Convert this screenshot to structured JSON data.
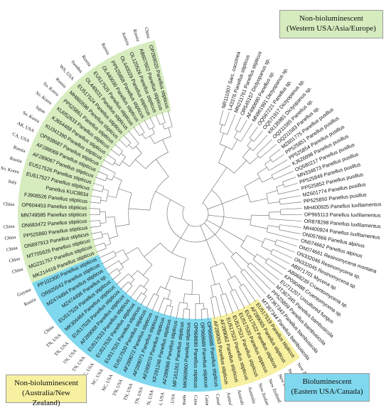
{
  "legend": {
    "western": {
      "line1": "Non-bioluminescent",
      "line2": "(Western USA/Asia/Europe)",
      "color": "#d6ecbf"
    },
    "australia": {
      "line1": "Non-bioluminescent",
      "line2": "(Australia/New Zealand)",
      "color": "#f6f0a0"
    },
    "eastern": {
      "line1": "Bioluminescent",
      "line2": "(Eastern USA/Canada)",
      "color": "#7fd8ee"
    }
  },
  "taxa": [
    {
      "label": "NR111007 Sarc. coccinea",
      "clade": "outgroup",
      "country": ""
    },
    {
      "label": "L43376 Panellus stipticus",
      "clade": "outgroup",
      "country": ""
    },
    {
      "label": "MN211761 Panellus stipticus",
      "clade": "outgroup",
      "country": ""
    },
    {
      "label": "OR545157 Dictyopanus sp.",
      "clade": "outgroup",
      "country": ""
    },
    {
      "label": "AF490690 Panellus sp.",
      "clade": "outgroup",
      "country": ""
    },
    {
      "label": "MN961991 Dictyopanus sp.",
      "clade": "outgroup",
      "country": ""
    },
    {
      "label": "OQ567221 Panellus sp.",
      "clade": "outgroup",
      "country": ""
    },
    {
      "label": "OQ571917 Dictyopanus sp.",
      "clade": "outgroup",
      "country": ""
    },
    {
      "label": "KR135981 Dictyopanus sp.",
      "clade": "outgroup",
      "country": ""
    },
    {
      "label": "OQ211585 Panellus sp.",
      "clade": "outgroup",
      "country": ""
    },
    {
      "label": "OQ211583 Panellus sp.",
      "clade": "outgroup",
      "country": ""
    },
    {
      "label": "MZ601775 Panellus pusillus",
      "clade": "outgroup",
      "country": ""
    },
    {
      "label": "PP525851 Panellus pusillus",
      "clade": "outgroup",
      "country": ""
    },
    {
      "label": "PP525854 Panellus pusillus",
      "clade": "outgroup",
      "country": ""
    },
    {
      "label": "KJ626998 Panellus pusillus",
      "clade": "outgroup",
      "country": ""
    },
    {
      "label": "OQ580217 Panellus pusillus",
      "clade": "outgroup",
      "country": ""
    },
    {
      "label": "MN334673 Panellus pusillus",
      "clade": "outgroup",
      "country": ""
    },
    {
      "label": "PP525849 Panellus pusillus",
      "clade": "outgroup",
      "country": ""
    },
    {
      "label": "PP525852 Panellus pusillus",
      "clade": "outgroup",
      "country": ""
    },
    {
      "label": "MZ601774 Panellus pusillus",
      "clade": "outgroup",
      "country": ""
    },
    {
      "label": "PP525850 Panellus pusillus",
      "clade": "outgroup",
      "country": ""
    },
    {
      "label": "MH400925 Panellus luxfilamentus",
      "clade": "outgroup",
      "country": ""
    },
    {
      "label": "OP965113 Panellus luxfilamentus",
      "clade": "outgroup",
      "country": ""
    },
    {
      "label": "OR878298 Panellus luxfilamentus",
      "clade": "outgroup",
      "country": ""
    },
    {
      "label": "MH400924 Panellus luxfilamentus",
      "clade": "outgroup",
      "country": ""
    },
    {
      "label": "ON057666 Panellus alpinus",
      "clade": "outgroup",
      "country": ""
    },
    {
      "label": "ON074662 Panellus alpinus",
      "clade": "outgroup",
      "country": ""
    },
    {
      "label": "ON074661 Resinomycena montana",
      "clade": "outgroup",
      "country": ""
    },
    {
      "label": "ON332046 Resinomycena sp.",
      "clade": "outgroup",
      "country": ""
    },
    {
      "label": "ON332045 Resinomycena sp.",
      "clade": "outgroup",
      "country": ""
    },
    {
      "label": "AB971701 Mycena sp.",
      "clade": "outgroup",
      "country": ""
    },
    {
      "label": "AB968239 Cruentomycena sp.",
      "clade": "outgroup",
      "country": ""
    },
    {
      "label": "KP090488 Cruentomycena sp.",
      "clade": "outgroup",
      "country": ""
    },
    {
      "label": "EU711207 Uncultured fungus",
      "clade": "outgroup",
      "country": ""
    },
    {
      "label": "MT367345 Panellus bambusicola",
      "clade": "outgroup",
      "country": ""
    },
    {
      "label": "PP525859 Panellus bambusicola",
      "clade": "outgroup",
      "country": ""
    },
    {
      "label": "MT367343 Panellus bambusicola",
      "clade": "outgroup",
      "country": ""
    },
    {
      "label": "MT367344 Panellus bambusicola",
      "clade": "outgroup",
      "country": ""
    },
    {
      "label": "EU517519 Panellus stipticus",
      "clade": "yellow",
      "country": "New Zealand"
    },
    {
      "label": "AF289065 Panellus stipticus",
      "clade": "yellow",
      "country": "New Zealand"
    },
    {
      "label": "EU517522 Panellus stipticus",
      "clade": "yellow",
      "country": "New Zealand"
    },
    {
      "label": "EU517520 Panellus stipticus",
      "clade": "yellow",
      "country": "New Zealand"
    },
    {
      "label": "EU517521 Panellus stipticus",
      "clade": "yellow",
      "country": "New Zealand"
    },
    {
      "label": "EU517523 Panellus stipticus",
      "clade": "yellow",
      "country": "Australia"
    },
    {
      "label": "AF289062 Panellus stipticus",
      "clade": "yellow",
      "country": "Australia"
    },
    {
      "label": "AF289063 Panellus stipticus",
      "clade": "yellow",
      "country": "Australia"
    },
    {
      "label": "OP968688 Panellus stipticus",
      "clade": "blue",
      "country": "Canada"
    },
    {
      "label": "OP968689 Panellus stipticus",
      "clade": "blue",
      "country": "Canada"
    },
    {
      "label": "OP968690 Panellus stipticus",
      "clade": "blue",
      "country": "Canada"
    },
    {
      "label": "MK969960 Panellus stipticus",
      "clade": "blue",
      "country": "Canada"
    },
    {
      "label": "MF161261 Panellus stipticus",
      "clade": "blue",
      "country": "MA, USA"
    },
    {
      "label": "AF289066 Panellus stipticus",
      "clade": "blue",
      "country": "TN, USA"
    },
    {
      "label": "KF291246 Panellus stipticus",
      "clade": "blue",
      "country": "TN, USA"
    },
    {
      "label": "AF289070 Panellus stipticus",
      "clade": "blue",
      "country": "TN, USA"
    },
    {
      "label": "AF289071 Panellus stipticus",
      "clade": "blue",
      "country": "TN, USA"
    },
    {
      "label": "AF289072 Panellus stipticus",
      "clade": "blue",
      "country": "TN, USA"
    },
    {
      "label": "EU517530 Panellus stipticus",
      "clade": "blue",
      "country": "NC, USA"
    },
    {
      "label": "EU517531 Panellus stipticus",
      "clade": "blue",
      "country": "NC, USA"
    },
    {
      "label": "EU517532 Panellus stipticus",
      "clade": "blue",
      "country": "NC, USA"
    },
    {
      "label": "EU517533 Panellus stipticus",
      "clade": "blue",
      "country": "TN, USA"
    },
    {
      "label": "AF289068 Panellus stipticus",
      "clade": "blue",
      "country": "TN, USA"
    },
    {
      "label": "EU517528 Panellus stipticus",
      "clade": "blue",
      "country": "TN, USA"
    },
    {
      "label": "MK304464 Panellus stipticus",
      "clade": "blue",
      "country": "TN, USA"
    },
    {
      "label": "EU517529 Panellus stipticus",
      "clade": "blue",
      "country": "China"
    },
    {
      "label": "MZ474496 Panellus sp.",
      "clade": "blue",
      "country": ""
    },
    {
      "label": "MZ474494 Panellus stipticus",
      "clade": "blue",
      "country": ""
    },
    {
      "label": "OR825542 Panellus stipticus",
      "clade": "blue",
      "country": "Russia"
    },
    {
      "label": "PP102300 Panellus stipticus",
      "clade": "blue",
      "country": "Guyana"
    },
    {
      "label": "MK214418 Panellus stipticus",
      "clade": "green",
      "country": ""
    },
    {
      "label": "MG231757 Panellus stipticus",
      "clade": "green",
      "country": "China"
    },
    {
      "label": "MT705626 Panellus stipticus",
      "clade": "green",
      "country": "China"
    },
    {
      "label": "ON897913 Panellus stipticus",
      "clade": "green",
      "country": "China"
    },
    {
      "label": "PP525860 Panellus stipticus",
      "clade": "green",
      "country": "China"
    },
    {
      "label": "ON683472 Panellus stipticus",
      "clade": "green",
      "country": "China"
    },
    {
      "label": "MN749585 Panellus stipticus",
      "clade": "green",
      "country": ""
    },
    {
      "label": "OP604453 Panellus stipticus",
      "clade": "green",
      "country": "China"
    },
    {
      "label": "FJ908526 Panellus stipticus",
      "clade": "green",
      "country": ""
    },
    {
      "label": "Panellus KUC8834",
      "clade": "green",
      "country": "Italy"
    },
    {
      "label": "EU517527 Panellus stipticus",
      "clade": "green",
      "country": "So. Korea"
    },
    {
      "label": "EU517526 Panellus stipticus",
      "clade": "green",
      "country": "Russia"
    },
    {
      "label": "AF289067 Panellus stipticus",
      "clade": "green",
      "country": "Russia"
    },
    {
      "label": "AF289069 Panellus stipticus",
      "clade": "green",
      "country": "CA, USA"
    },
    {
      "label": "OP938687 Panellus stipticus",
      "clade": "green",
      "country": "AK, USA"
    },
    {
      "label": "KU341390 Panellus stipticus",
      "clade": "green",
      "country": "So. Korea"
    },
    {
      "label": "KJ654488 Panellus stipticus",
      "clade": "green",
      "country": "Japan"
    },
    {
      "label": "KU052633 Panellus stipticus",
      "clade": "green",
      "country": "So. Korea"
    },
    {
      "label": "PP525861 Panellus stipticus",
      "clade": "green",
      "country": "So. Korea"
    },
    {
      "label": "MH860596 Panellus stipticus",
      "clade": "green",
      "country": "Russia"
    },
    {
      "label": "EU517524 Panellus stipticus",
      "clade": "green",
      "country": "WA, USA"
    },
    {
      "label": "OL440031 Panellus stipticus",
      "clade": "green",
      "country": "Sweden"
    },
    {
      "label": "EU517525 Panellus stipticus",
      "clade": "green",
      "country": "Russia"
    },
    {
      "label": "OL440030 Panellus stipticus",
      "clade": "green",
      "country": ""
    },
    {
      "label": "PP525858 Panellus stipticus",
      "clade": "green",
      "country": "Russia"
    },
    {
      "label": "OL440029 Panellus stipticus",
      "clade": "green",
      "country": ""
    },
    {
      "label": "OL120526 Panellus stipticus",
      "clade": "green",
      "country": "Austria"
    },
    {
      "label": "AB607602 Panellus stipticus",
      "clade": "green",
      "country": "Russia"
    },
    {
      "label": "OP269020 Panellus stipticus",
      "clade": "green",
      "country": "China"
    }
  ]
}
